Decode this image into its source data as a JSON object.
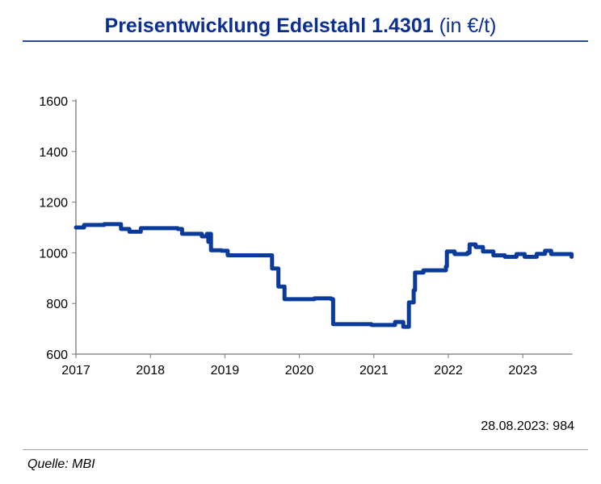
{
  "chart_data": {
    "type": "line",
    "title": "Preisentwicklung Edelstahl 1.4301",
    "title_unit": "(in €/t)",
    "xlabel": "",
    "ylabel": "",
    "ylim": [
      600,
      1600
    ],
    "yticks": [
      600,
      800,
      1000,
      1200,
      1400,
      1600
    ],
    "xticks": [
      "2017",
      "2018",
      "2019",
      "2020",
      "2021",
      "2022",
      "2023"
    ],
    "xlim": [
      "2017-01-01",
      "2023-09-01"
    ],
    "grid": false,
    "line_color": "#0a3a9a",
    "series": [
      {
        "points": [
          [
            "2017-01-01",
            1100
          ],
          [
            "2017-01-25",
            1100
          ],
          [
            "2017-02-10",
            1110
          ],
          [
            "2017-05-20",
            1113
          ],
          [
            "2017-07-15",
            1113
          ],
          [
            "2017-08-10",
            1094
          ],
          [
            "2017-09-20",
            1083
          ],
          [
            "2017-10-25",
            1083
          ],
          [
            "2017-11-15",
            1097
          ],
          [
            "2018-01-15",
            1097
          ],
          [
            "2018-05-15",
            1094
          ],
          [
            "2018-06-05",
            1075
          ],
          [
            "2018-09-10",
            1065
          ],
          [
            "2018-10-05",
            1075
          ],
          [
            "2018-10-12",
            1043
          ],
          [
            "2018-10-18",
            1075
          ],
          [
            "2018-10-25",
            1010
          ],
          [
            "2018-12-15",
            1008
          ],
          [
            "2019-01-15",
            990
          ],
          [
            "2019-08-10",
            990
          ],
          [
            "2019-08-20",
            938
          ],
          [
            "2019-09-20",
            867
          ],
          [
            "2019-10-20",
            817
          ],
          [
            "2020-03-15",
            820
          ],
          [
            "2020-06-05",
            817
          ],
          [
            "2020-06-15",
            718
          ],
          [
            "2020-12-20",
            715
          ],
          [
            "2021-04-15",
            727
          ],
          [
            "2021-05-25",
            708
          ],
          [
            "2021-06-20",
            708
          ],
          [
            "2021-06-22",
            804
          ],
          [
            "2021-07-15",
            852
          ],
          [
            "2021-07-22",
            922
          ],
          [
            "2021-09-01",
            931
          ],
          [
            "2021-11-20",
            931
          ],
          [
            "2021-12-20",
            946
          ],
          [
            "2021-12-25",
            1005
          ],
          [
            "2022-02-01",
            995
          ],
          [
            "2022-04-05",
            1000
          ],
          [
            "2022-04-15",
            1033
          ],
          [
            "2022-05-15",
            1023
          ],
          [
            "2022-06-20",
            1005
          ],
          [
            "2022-08-10",
            990
          ],
          [
            "2022-10-05",
            984
          ],
          [
            "2022-12-01",
            995
          ],
          [
            "2023-01-10",
            984
          ],
          [
            "2023-03-10",
            996
          ],
          [
            "2023-04-20",
            1008
          ],
          [
            "2023-05-20",
            995
          ],
          [
            "2023-08-28",
            984
          ]
        ]
      }
    ]
  },
  "annotation": "28.08.2023: 984",
  "source": "Quelle: MBI"
}
